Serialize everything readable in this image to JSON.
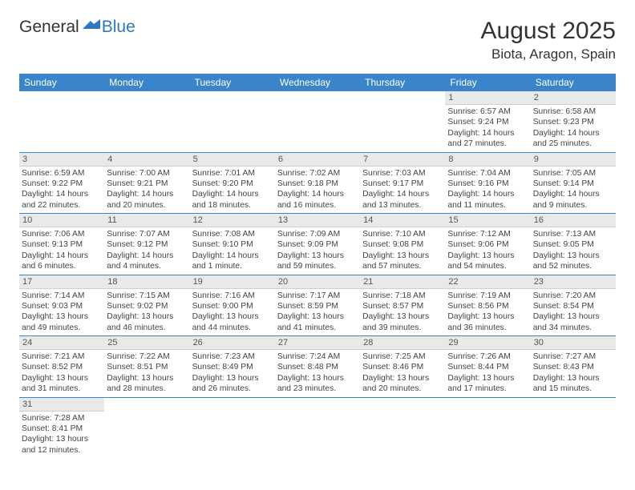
{
  "brand": {
    "general": "General",
    "blue": "Blue"
  },
  "title": {
    "month": "August 2025",
    "location": "Biota, Aragon, Spain"
  },
  "colors": {
    "header_bg": "#3a85c9",
    "dayhead_bg": "#e9e9e9",
    "accent": "#2f78c1"
  },
  "weekdays": [
    "Sunday",
    "Monday",
    "Tuesday",
    "Wednesday",
    "Thursday",
    "Friday",
    "Saturday"
  ],
  "grid": [
    [
      null,
      null,
      null,
      null,
      null,
      {
        "num": "1",
        "sunrise": "Sunrise: 6:57 AM",
        "sunset": "Sunset: 9:24 PM",
        "daylight": "Daylight: 14 hours and 27 minutes."
      },
      {
        "num": "2",
        "sunrise": "Sunrise: 6:58 AM",
        "sunset": "Sunset: 9:23 PM",
        "daylight": "Daylight: 14 hours and 25 minutes."
      }
    ],
    [
      {
        "num": "3",
        "sunrise": "Sunrise: 6:59 AM",
        "sunset": "Sunset: 9:22 PM",
        "daylight": "Daylight: 14 hours and 22 minutes."
      },
      {
        "num": "4",
        "sunrise": "Sunrise: 7:00 AM",
        "sunset": "Sunset: 9:21 PM",
        "daylight": "Daylight: 14 hours and 20 minutes."
      },
      {
        "num": "5",
        "sunrise": "Sunrise: 7:01 AM",
        "sunset": "Sunset: 9:20 PM",
        "daylight": "Daylight: 14 hours and 18 minutes."
      },
      {
        "num": "6",
        "sunrise": "Sunrise: 7:02 AM",
        "sunset": "Sunset: 9:18 PM",
        "daylight": "Daylight: 14 hours and 16 minutes."
      },
      {
        "num": "7",
        "sunrise": "Sunrise: 7:03 AM",
        "sunset": "Sunset: 9:17 PM",
        "daylight": "Daylight: 14 hours and 13 minutes."
      },
      {
        "num": "8",
        "sunrise": "Sunrise: 7:04 AM",
        "sunset": "Sunset: 9:16 PM",
        "daylight": "Daylight: 14 hours and 11 minutes."
      },
      {
        "num": "9",
        "sunrise": "Sunrise: 7:05 AM",
        "sunset": "Sunset: 9:14 PM",
        "daylight": "Daylight: 14 hours and 9 minutes."
      }
    ],
    [
      {
        "num": "10",
        "sunrise": "Sunrise: 7:06 AM",
        "sunset": "Sunset: 9:13 PM",
        "daylight": "Daylight: 14 hours and 6 minutes."
      },
      {
        "num": "11",
        "sunrise": "Sunrise: 7:07 AM",
        "sunset": "Sunset: 9:12 PM",
        "daylight": "Daylight: 14 hours and 4 minutes."
      },
      {
        "num": "12",
        "sunrise": "Sunrise: 7:08 AM",
        "sunset": "Sunset: 9:10 PM",
        "daylight": "Daylight: 14 hours and 1 minute."
      },
      {
        "num": "13",
        "sunrise": "Sunrise: 7:09 AM",
        "sunset": "Sunset: 9:09 PM",
        "daylight": "Daylight: 13 hours and 59 minutes."
      },
      {
        "num": "14",
        "sunrise": "Sunrise: 7:10 AM",
        "sunset": "Sunset: 9:08 PM",
        "daylight": "Daylight: 13 hours and 57 minutes."
      },
      {
        "num": "15",
        "sunrise": "Sunrise: 7:12 AM",
        "sunset": "Sunset: 9:06 PM",
        "daylight": "Daylight: 13 hours and 54 minutes."
      },
      {
        "num": "16",
        "sunrise": "Sunrise: 7:13 AM",
        "sunset": "Sunset: 9:05 PM",
        "daylight": "Daylight: 13 hours and 52 minutes."
      }
    ],
    [
      {
        "num": "17",
        "sunrise": "Sunrise: 7:14 AM",
        "sunset": "Sunset: 9:03 PM",
        "daylight": "Daylight: 13 hours and 49 minutes."
      },
      {
        "num": "18",
        "sunrise": "Sunrise: 7:15 AM",
        "sunset": "Sunset: 9:02 PM",
        "daylight": "Daylight: 13 hours and 46 minutes."
      },
      {
        "num": "19",
        "sunrise": "Sunrise: 7:16 AM",
        "sunset": "Sunset: 9:00 PM",
        "daylight": "Daylight: 13 hours and 44 minutes."
      },
      {
        "num": "20",
        "sunrise": "Sunrise: 7:17 AM",
        "sunset": "Sunset: 8:59 PM",
        "daylight": "Daylight: 13 hours and 41 minutes."
      },
      {
        "num": "21",
        "sunrise": "Sunrise: 7:18 AM",
        "sunset": "Sunset: 8:57 PM",
        "daylight": "Daylight: 13 hours and 39 minutes."
      },
      {
        "num": "22",
        "sunrise": "Sunrise: 7:19 AM",
        "sunset": "Sunset: 8:56 PM",
        "daylight": "Daylight: 13 hours and 36 minutes."
      },
      {
        "num": "23",
        "sunrise": "Sunrise: 7:20 AM",
        "sunset": "Sunset: 8:54 PM",
        "daylight": "Daylight: 13 hours and 34 minutes."
      }
    ],
    [
      {
        "num": "24",
        "sunrise": "Sunrise: 7:21 AM",
        "sunset": "Sunset: 8:52 PM",
        "daylight": "Daylight: 13 hours and 31 minutes."
      },
      {
        "num": "25",
        "sunrise": "Sunrise: 7:22 AM",
        "sunset": "Sunset: 8:51 PM",
        "daylight": "Daylight: 13 hours and 28 minutes."
      },
      {
        "num": "26",
        "sunrise": "Sunrise: 7:23 AM",
        "sunset": "Sunset: 8:49 PM",
        "daylight": "Daylight: 13 hours and 26 minutes."
      },
      {
        "num": "27",
        "sunrise": "Sunrise: 7:24 AM",
        "sunset": "Sunset: 8:48 PM",
        "daylight": "Daylight: 13 hours and 23 minutes."
      },
      {
        "num": "28",
        "sunrise": "Sunrise: 7:25 AM",
        "sunset": "Sunset: 8:46 PM",
        "daylight": "Daylight: 13 hours and 20 minutes."
      },
      {
        "num": "29",
        "sunrise": "Sunrise: 7:26 AM",
        "sunset": "Sunset: 8:44 PM",
        "daylight": "Daylight: 13 hours and 17 minutes."
      },
      {
        "num": "30",
        "sunrise": "Sunrise: 7:27 AM",
        "sunset": "Sunset: 8:43 PM",
        "daylight": "Daylight: 13 hours and 15 minutes."
      }
    ],
    [
      {
        "num": "31",
        "sunrise": "Sunrise: 7:28 AM",
        "sunset": "Sunset: 8:41 PM",
        "daylight": "Daylight: 13 hours and 12 minutes."
      },
      null,
      null,
      null,
      null,
      null,
      null
    ]
  ]
}
